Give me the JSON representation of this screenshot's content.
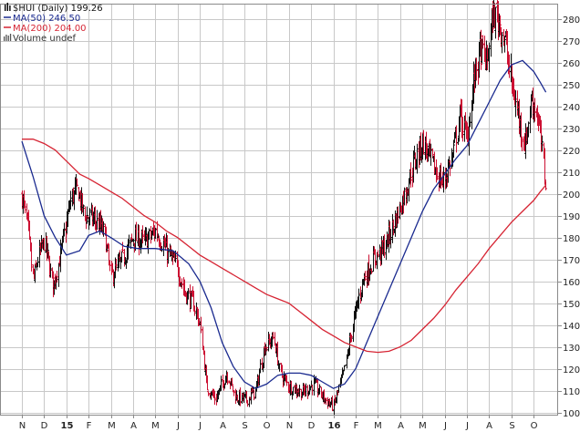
{
  "legend": {
    "title": "$HUI (Daily)",
    "title_value": "199.26",
    "ma50_label": "MA(50)",
    "ma50_value": "246.50",
    "ma200_label": "MA(200)",
    "ma200_value": "204.00",
    "volume_label": "Volume undef"
  },
  "icons": {
    "chart_glyph": "bar-chart-icon",
    "volume_glyph": "volume-bars-icon"
  },
  "colors": {
    "up_bar": "#111111",
    "down_bar": "#cc1133",
    "ma50": "#1a2a8f",
    "ma200": "#d62433",
    "grid": "#c8c8c8",
    "frame": "#8a8a8a",
    "background": "#ffffff"
  },
  "chart_data": {
    "type": "line",
    "title": "$HUI (Daily)",
    "last": 199.26,
    "ylim": [
      99,
      287
    ],
    "y_ticks": [
      100,
      110,
      120,
      130,
      140,
      150,
      160,
      170,
      180,
      190,
      200,
      210,
      220,
      230,
      240,
      250,
      260,
      270,
      280
    ],
    "x_tick_labels": [
      "N",
      "D",
      "15",
      "F",
      "M",
      "A",
      "M",
      "J",
      "J",
      "A",
      "S",
      "O",
      "N",
      "D",
      "16",
      "F",
      "M",
      "A",
      "M",
      "J",
      "J",
      "A",
      "S",
      "O"
    ],
    "x_bold_labels": [
      "15",
      "16"
    ],
    "grid": true,
    "legend_position": "top-left",
    "price_path": [
      {
        "m": 0.0,
        "v": 199
      },
      {
        "m": 0.25,
        "v": 185
      },
      {
        "m": 0.5,
        "v": 160
      },
      {
        "m": 0.75,
        "v": 172
      },
      {
        "m": 1.0,
        "v": 178
      },
      {
        "m": 1.4,
        "v": 158
      },
      {
        "m": 1.8,
        "v": 176
      },
      {
        "m": 2.2,
        "v": 198
      },
      {
        "m": 2.5,
        "v": 202
      },
      {
        "m": 2.8,
        "v": 190
      },
      {
        "m": 3.3,
        "v": 188
      },
      {
        "m": 3.7,
        "v": 182
      },
      {
        "m": 4.0,
        "v": 162
      },
      {
        "m": 4.5,
        "v": 170
      },
      {
        "m": 5.0,
        "v": 180
      },
      {
        "m": 5.5,
        "v": 178
      },
      {
        "m": 6.0,
        "v": 183
      },
      {
        "m": 6.6,
        "v": 172
      },
      {
        "m": 7.0,
        "v": 166
      },
      {
        "m": 7.3,
        "v": 155
      },
      {
        "m": 7.7,
        "v": 150
      },
      {
        "m": 8.0,
        "v": 140
      },
      {
        "m": 8.3,
        "v": 112
      },
      {
        "m": 8.7,
        "v": 106
      },
      {
        "m": 9.2,
        "v": 118
      },
      {
        "m": 9.6,
        "v": 107
      },
      {
        "m": 10.1,
        "v": 106
      },
      {
        "m": 10.5,
        "v": 110
      },
      {
        "m": 10.9,
        "v": 130
      },
      {
        "m": 11.3,
        "v": 134
      },
      {
        "m": 11.6,
        "v": 118
      },
      {
        "m": 12.0,
        "v": 112
      },
      {
        "m": 12.6,
        "v": 109
      },
      {
        "m": 13.1,
        "v": 113
      },
      {
        "m": 13.7,
        "v": 105
      },
      {
        "m": 14.0,
        "v": 103
      },
      {
        "m": 14.5,
        "v": 120
      },
      {
        "m": 14.9,
        "v": 142
      },
      {
        "m": 15.3,
        "v": 160
      },
      {
        "m": 15.8,
        "v": 170
      },
      {
        "m": 16.3,
        "v": 176
      },
      {
        "m": 16.7,
        "v": 186
      },
      {
        "m": 17.2,
        "v": 200
      },
      {
        "m": 17.6,
        "v": 214
      },
      {
        "m": 18.0,
        "v": 224
      },
      {
        "m": 18.5,
        "v": 212
      },
      {
        "m": 18.9,
        "v": 205
      },
      {
        "m": 19.3,
        "v": 216
      },
      {
        "m": 19.7,
        "v": 236
      },
      {
        "m": 20.0,
        "v": 224
      },
      {
        "m": 20.3,
        "v": 252
      },
      {
        "m": 20.6,
        "v": 266
      },
      {
        "m": 20.9,
        "v": 260
      },
      {
        "m": 21.15,
        "v": 282
      },
      {
        "m": 21.4,
        "v": 280
      },
      {
        "m": 21.7,
        "v": 270
      },
      {
        "m": 22.0,
        "v": 250
      },
      {
        "m": 22.3,
        "v": 236
      },
      {
        "m": 22.6,
        "v": 222
      },
      {
        "m": 22.9,
        "v": 244
      },
      {
        "m": 23.1,
        "v": 238
      },
      {
        "m": 23.3,
        "v": 226
      },
      {
        "m": 23.45,
        "v": 212
      },
      {
        "m": 23.55,
        "v": 199
      }
    ],
    "series": [
      {
        "name": "MA(50)",
        "points": [
          {
            "m": 0.0,
            "v": 224
          },
          {
            "m": 0.5,
            "v": 208
          },
          {
            "m": 1.0,
            "v": 190
          },
          {
            "m": 1.5,
            "v": 180
          },
          {
            "m": 2.0,
            "v": 172
          },
          {
            "m": 2.6,
            "v": 174
          },
          {
            "m": 3.0,
            "v": 181
          },
          {
            "m": 3.5,
            "v": 183
          },
          {
            "m": 4.0,
            "v": 180
          },
          {
            "m": 4.6,
            "v": 176
          },
          {
            "m": 5.2,
            "v": 175
          },
          {
            "m": 6.0,
            "v": 175
          },
          {
            "m": 6.8,
            "v": 174
          },
          {
            "m": 7.5,
            "v": 168
          },
          {
            "m": 8.0,
            "v": 160
          },
          {
            "m": 8.5,
            "v": 148
          },
          {
            "m": 9.0,
            "v": 132
          },
          {
            "m": 9.5,
            "v": 121
          },
          {
            "m": 10.0,
            "v": 114
          },
          {
            "m": 10.5,
            "v": 111
          },
          {
            "m": 11.0,
            "v": 113
          },
          {
            "m": 11.5,
            "v": 117
          },
          {
            "m": 12.0,
            "v": 118
          },
          {
            "m": 12.5,
            "v": 118
          },
          {
            "m": 13.0,
            "v": 117
          },
          {
            "m": 13.5,
            "v": 114
          },
          {
            "m": 14.0,
            "v": 111
          },
          {
            "m": 14.5,
            "v": 113
          },
          {
            "m": 15.0,
            "v": 120
          },
          {
            "m": 15.5,
            "v": 132
          },
          {
            "m": 16.0,
            "v": 144
          },
          {
            "m": 16.5,
            "v": 156
          },
          {
            "m": 17.0,
            "v": 168
          },
          {
            "m": 17.5,
            "v": 180
          },
          {
            "m": 18.0,
            "v": 192
          },
          {
            "m": 18.5,
            "v": 202
          },
          {
            "m": 19.0,
            "v": 209
          },
          {
            "m": 19.5,
            "v": 216
          },
          {
            "m": 20.0,
            "v": 222
          },
          {
            "m": 20.5,
            "v": 232
          },
          {
            "m": 21.0,
            "v": 242
          },
          {
            "m": 21.5,
            "v": 252
          },
          {
            "m": 22.0,
            "v": 259
          },
          {
            "m": 22.5,
            "v": 261
          },
          {
            "m": 23.0,
            "v": 256
          },
          {
            "m": 23.3,
            "v": 251
          },
          {
            "m": 23.55,
            "v": 246.5
          }
        ]
      },
      {
        "name": "MA(200)",
        "points": [
          {
            "m": 0.0,
            "v": 225
          },
          {
            "m": 0.5,
            "v": 225
          },
          {
            "m": 1.0,
            "v": 223
          },
          {
            "m": 1.5,
            "v": 220
          },
          {
            "m": 2.0,
            "v": 215
          },
          {
            "m": 2.6,
            "v": 209
          },
          {
            "m": 3.0,
            "v": 207
          },
          {
            "m": 3.5,
            "v": 204
          },
          {
            "m": 4.0,
            "v": 201
          },
          {
            "m": 4.5,
            "v": 198
          },
          {
            "m": 5.0,
            "v": 194
          },
          {
            "m": 5.5,
            "v": 190
          },
          {
            "m": 6.0,
            "v": 187
          },
          {
            "m": 6.5,
            "v": 183
          },
          {
            "m": 7.0,
            "v": 180
          },
          {
            "m": 7.5,
            "v": 176
          },
          {
            "m": 8.0,
            "v": 172
          },
          {
            "m": 8.5,
            "v": 169
          },
          {
            "m": 9.0,
            "v": 166
          },
          {
            "m": 9.5,
            "v": 163
          },
          {
            "m": 10.0,
            "v": 160
          },
          {
            "m": 10.5,
            "v": 157
          },
          {
            "m": 11.0,
            "v": 154
          },
          {
            "m": 11.5,
            "v": 152
          },
          {
            "m": 12.0,
            "v": 150
          },
          {
            "m": 12.5,
            "v": 146
          },
          {
            "m": 13.0,
            "v": 142
          },
          {
            "m": 13.5,
            "v": 138
          },
          {
            "m": 14.0,
            "v": 135
          },
          {
            "m": 14.5,
            "v": 132
          },
          {
            "m": 15.0,
            "v": 130
          },
          {
            "m": 15.5,
            "v": 128
          },
          {
            "m": 16.0,
            "v": 127.5
          },
          {
            "m": 16.5,
            "v": 128
          },
          {
            "m": 17.0,
            "v": 130
          },
          {
            "m": 17.5,
            "v": 133
          },
          {
            "m": 18.0,
            "v": 138
          },
          {
            "m": 18.5,
            "v": 143
          },
          {
            "m": 19.0,
            "v": 149
          },
          {
            "m": 19.5,
            "v": 156
          },
          {
            "m": 20.0,
            "v": 162
          },
          {
            "m": 20.5,
            "v": 168
          },
          {
            "m": 21.0,
            "v": 175
          },
          {
            "m": 21.5,
            "v": 181
          },
          {
            "m": 22.0,
            "v": 187
          },
          {
            "m": 22.5,
            "v": 192
          },
          {
            "m": 23.0,
            "v": 197
          },
          {
            "m": 23.3,
            "v": 201
          },
          {
            "m": 23.55,
            "v": 204
          }
        ]
      }
    ]
  }
}
